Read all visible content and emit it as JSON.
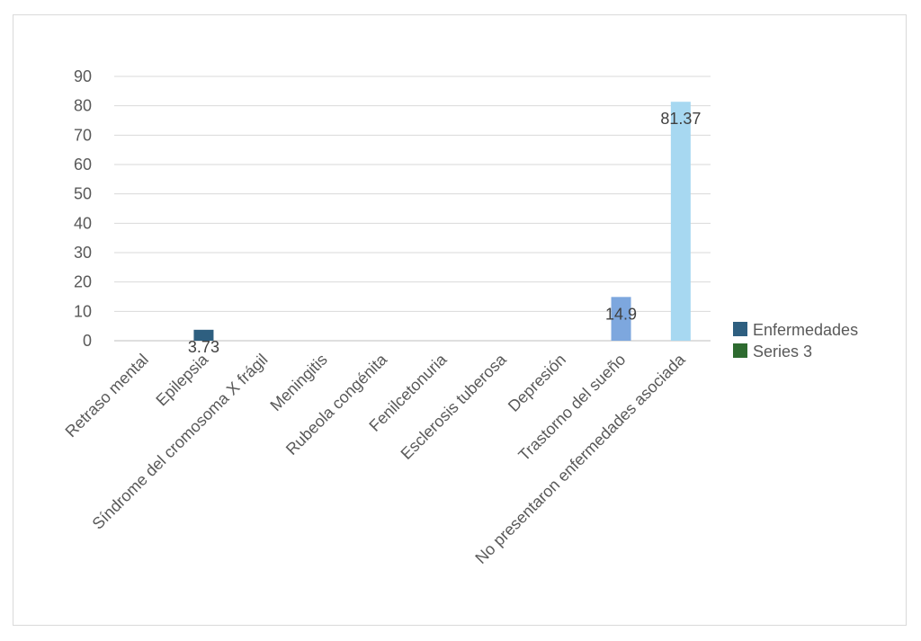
{
  "chart_data": {
    "type": "bar",
    "categories": [
      "Retraso mental",
      "Epilepsia",
      "Síndrome del cromosoma X frágil",
      "Meningitis",
      "Rubeola congénita",
      "Fenilcetonuria",
      "Esclerosis tuberosa",
      "Depresión",
      "Trastorno del sueño",
      "No presentaron enfermedades asociada"
    ],
    "series": [
      {
        "name": "Enfermedades",
        "values": [
          null,
          3.73,
          null,
          null,
          null,
          null,
          null,
          null,
          14.9,
          81.37
        ],
        "data_labels": [
          "",
          "3.73",
          "",
          "",
          "",
          "",
          "",
          "",
          "14.9",
          "81.37"
        ],
        "point_colors": [
          "#2e5f80",
          "#2e5f80",
          "#2e5f80",
          "#2e5f80",
          "#2e5f80",
          "#2e5f80",
          "#2e5f80",
          "#2e5f80",
          "#7da7de",
          "#a7d8f1"
        ],
        "legend_color": "#2e5f80"
      },
      {
        "name": "Series 3",
        "values": [
          null,
          null,
          null,
          null,
          null,
          null,
          null,
          null,
          null,
          null
        ],
        "legend_color": "#2e6b30"
      }
    ],
    "title": "",
    "xlabel": "",
    "ylabel": "",
    "ylim": [
      0,
      90
    ],
    "yticks": [
      "0",
      "10",
      "20",
      "30",
      "40",
      "50",
      "60",
      "70",
      "80",
      "90"
    ],
    "grid": true,
    "legend_position": "right"
  }
}
